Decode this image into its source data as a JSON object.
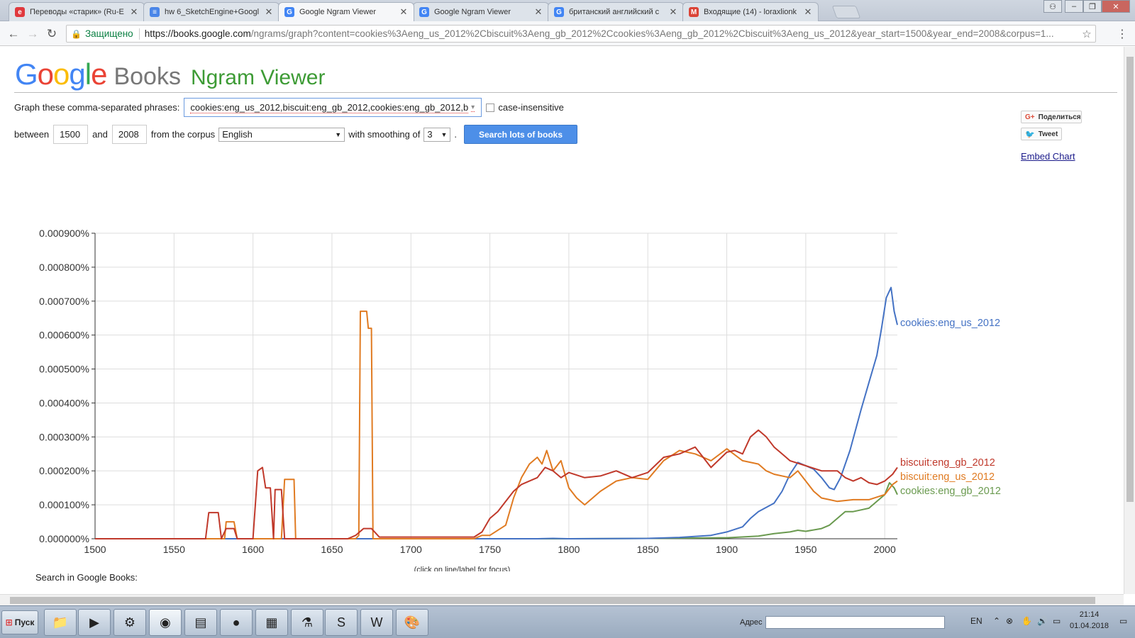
{
  "tabs": [
    {
      "title": "Переводы «старик» (Ru-E",
      "color": "#e0393e",
      "glyph": "e",
      "icon": "reverso-icon"
    },
    {
      "title": "hw 6_SketchEngine+Googl",
      "color": "#4a86e8",
      "glyph": "≡",
      "icon": "docs-icon"
    },
    {
      "title": "Google Ngram Viewer",
      "color": "#4285f4",
      "glyph": "G",
      "icon": "google-icon"
    },
    {
      "title": "Google Ngram Viewer",
      "color": "#4285f4",
      "glyph": "G",
      "icon": "google-icon"
    },
    {
      "title": "британский английский с",
      "color": "#4285f4",
      "glyph": "G",
      "icon": "google-icon"
    },
    {
      "title": "Входящие (14) - loraxlionk",
      "color": "#db4437",
      "glyph": "M",
      "icon": "gmail-icon"
    }
  ],
  "active_tab": 2,
  "address": {
    "secure_label": "Защищено",
    "url_host": "https://books.google.com",
    "url_rest": "/ngrams/graph?content=cookies%3Aeng_us_2012%2Cbiscuit%3Aeng_gb_2012%2Ccookies%3Aeng_gb_2012%2Cbiscuit%3Aeng_us_2012&year_start=1500&year_end=2008&corpus=1..."
  },
  "header": {
    "logo_books": "Books",
    "logo_ngram": "Ngram Viewer"
  },
  "form": {
    "phrases_label": "Graph these comma-separated phrases:",
    "phrases_value": "cookies:eng_us_2012,biscuit:eng_gb_2012,cookies:eng_gb_2012,b",
    "case_label": "case-insensitive",
    "between_label": "between",
    "year_start": "1500",
    "and_label": "and",
    "year_end": "2008",
    "corpus_label": "from the corpus",
    "corpus_value": "English",
    "smoothing_label": "with smoothing of",
    "smoothing_value": "3",
    "period": ".",
    "search_button": "Search lots of books"
  },
  "sidebar": {
    "share_label": "Поделиться",
    "tweet_label": "Tweet",
    "embed_label": "Embed Chart"
  },
  "chart_data": {
    "type": "line",
    "xlim": [
      1500,
      2008
    ],
    "ylim": [
      0,
      0.0009
    ],
    "x_ticks": [
      "1500",
      "1550",
      "1600",
      "1650",
      "1700",
      "1750",
      "1800",
      "1850",
      "1900",
      "1950",
      "2000"
    ],
    "y_ticks": [
      "0.000000%",
      "0.000100%",
      "0.000200%",
      "0.000300%",
      "0.000400%",
      "0.000500%",
      "0.000600%",
      "0.000700%",
      "0.000800%",
      "0.000900%"
    ],
    "note": "(click on line/label for focus)",
    "grid": true,
    "series": [
      {
        "name": "cookies:eng_us_2012",
        "color": "#4472c4",
        "points": [
          [
            1500,
            0
          ],
          [
            1780,
            0
          ],
          [
            1790,
            1e-06
          ],
          [
            1800,
            0
          ],
          [
            1850,
            1e-06
          ],
          [
            1870,
            4e-06
          ],
          [
            1890,
            1e-05
          ],
          [
            1900,
            2e-05
          ],
          [
            1910,
            3.5e-05
          ],
          [
            1915,
            6e-05
          ],
          [
            1920,
            8e-05
          ],
          [
            1930,
            0.000105
          ],
          [
            1935,
            0.00014
          ],
          [
            1940,
            0.00019
          ],
          [
            1945,
            0.000225
          ],
          [
            1950,
            0.000215
          ],
          [
            1955,
            0.000205
          ],
          [
            1960,
            0.00018
          ],
          [
            1965,
            0.00015
          ],
          [
            1968,
            0.000145
          ],
          [
            1972,
            0.00018
          ],
          [
            1978,
            0.00026
          ],
          [
            1985,
            0.00038
          ],
          [
            1990,
            0.00046
          ],
          [
            1995,
            0.00054
          ],
          [
            1998,
            0.00062
          ],
          [
            2001,
            0.00071
          ],
          [
            2004,
            0.00074
          ],
          [
            2006,
            0.00067
          ],
          [
            2008,
            0.00063
          ]
        ]
      },
      {
        "name": "biscuit:eng_gb_2012",
        "color": "#c0392b",
        "points": [
          [
            1500,
            0
          ],
          [
            1570,
            0
          ],
          [
            1572,
            7.7e-05
          ],
          [
            1578,
            7.7e-05
          ],
          [
            1580,
            0
          ],
          [
            1583,
            3e-05
          ],
          [
            1588,
            3e-05
          ],
          [
            1590,
            0
          ],
          [
            1600,
            0
          ],
          [
            1603,
            0.0002
          ],
          [
            1606,
            0.00021
          ],
          [
            1608,
            0.00015
          ],
          [
            1611,
            0.00015
          ],
          [
            1613,
            0
          ],
          [
            1614,
            0.000145
          ],
          [
            1618,
            0.000145
          ],
          [
            1620,
            0
          ],
          [
            1660,
            0
          ],
          [
            1665,
            1e-05
          ],
          [
            1670,
            3e-05
          ],
          [
            1675,
            3e-05
          ],
          [
            1680,
            5e-06
          ],
          [
            1700,
            5e-06
          ],
          [
            1720,
            5e-06
          ],
          [
            1740,
            5e-06
          ],
          [
            1745,
            2e-05
          ],
          [
            1750,
            6e-05
          ],
          [
            1755,
            8e-05
          ],
          [
            1760,
            0.00011
          ],
          [
            1765,
            0.00014
          ],
          [
            1770,
            0.00016
          ],
          [
            1775,
            0.00017
          ],
          [
            1780,
            0.00018
          ],
          [
            1785,
            0.00021
          ],
          [
            1790,
            0.0002
          ],
          [
            1795,
            0.00018
          ],
          [
            1800,
            0.000195
          ],
          [
            1810,
            0.00018
          ],
          [
            1820,
            0.000185
          ],
          [
            1830,
            0.0002
          ],
          [
            1840,
            0.00018
          ],
          [
            1850,
            0.000195
          ],
          [
            1860,
            0.00024
          ],
          [
            1870,
            0.00025
          ],
          [
            1880,
            0.00027
          ],
          [
            1890,
            0.00021
          ],
          [
            1900,
            0.000255
          ],
          [
            1905,
            0.00026
          ],
          [
            1910,
            0.00025
          ],
          [
            1915,
            0.0003
          ],
          [
            1920,
            0.00032
          ],
          [
            1925,
            0.0003
          ],
          [
            1930,
            0.00027
          ],
          [
            1935,
            0.00025
          ],
          [
            1940,
            0.00023
          ],
          [
            1950,
            0.000215
          ],
          [
            1960,
            0.0002
          ],
          [
            1965,
            0.0002
          ],
          [
            1970,
            0.0002
          ],
          [
            1975,
            0.00018
          ],
          [
            1980,
            0.00017
          ],
          [
            1985,
            0.00018
          ],
          [
            1990,
            0.000165
          ],
          [
            1995,
            0.00016
          ],
          [
            2000,
            0.00017
          ],
          [
            2005,
            0.00019
          ],
          [
            2008,
            0.00021
          ]
        ]
      },
      {
        "name": "biscuit:eng_us_2012",
        "color": "#e07b22",
        "points": [
          [
            1500,
            0
          ],
          [
            1582,
            0
          ],
          [
            1583,
            5e-05
          ],
          [
            1588,
            5e-05
          ],
          [
            1590,
            0
          ],
          [
            1618,
            0
          ],
          [
            1620,
            0.000175
          ],
          [
            1626,
            0.000175
          ],
          [
            1627,
            0
          ],
          [
            1665,
            0
          ],
          [
            1667,
            1e-05
          ],
          [
            1668,
            0.00067
          ],
          [
            1672,
            0.00067
          ],
          [
            1673,
            0.00062
          ],
          [
            1675,
            0.00062
          ],
          [
            1676,
            0
          ],
          [
            1740,
            0
          ],
          [
            1745,
            1e-05
          ],
          [
            1750,
            1e-05
          ],
          [
            1760,
            4e-05
          ],
          [
            1765,
            0.00012
          ],
          [
            1770,
            0.00018
          ],
          [
            1775,
            0.00022
          ],
          [
            1780,
            0.00024
          ],
          [
            1783,
            0.00022
          ],
          [
            1786,
            0.00026
          ],
          [
            1790,
            0.0002
          ],
          [
            1795,
            0.00023
          ],
          [
            1800,
            0.00015
          ],
          [
            1805,
            0.00012
          ],
          [
            1810,
            0.0001
          ],
          [
            1820,
            0.00014
          ],
          [
            1830,
            0.00017
          ],
          [
            1840,
            0.00018
          ],
          [
            1850,
            0.000175
          ],
          [
            1860,
            0.00023
          ],
          [
            1870,
            0.00026
          ],
          [
            1880,
            0.00025
          ],
          [
            1890,
            0.00023
          ],
          [
            1900,
            0.000265
          ],
          [
            1910,
            0.00023
          ],
          [
            1920,
            0.00022
          ],
          [
            1925,
            0.0002
          ],
          [
            1930,
            0.00019
          ],
          [
            1940,
            0.00018
          ],
          [
            1945,
            0.0002
          ],
          [
            1950,
            0.00017
          ],
          [
            1955,
            0.00014
          ],
          [
            1960,
            0.00012
          ],
          [
            1965,
            0.000115
          ],
          [
            1970,
            0.00011
          ],
          [
            1980,
            0.000115
          ],
          [
            1990,
            0.000115
          ],
          [
            2000,
            0.00013
          ],
          [
            2005,
            0.00016
          ],
          [
            2008,
            0.00017
          ]
        ]
      },
      {
        "name": "cookies:eng_gb_2012",
        "color": "#6a9a4f",
        "points": [
          [
            1500,
            0
          ],
          [
            1800,
            0
          ],
          [
            1850,
            1e-06
          ],
          [
            1880,
            2e-06
          ],
          [
            1900,
            3e-06
          ],
          [
            1920,
            8e-06
          ],
          [
            1930,
            1.5e-05
          ],
          [
            1940,
            2e-05
          ],
          [
            1945,
            2.5e-05
          ],
          [
            1950,
            2.2e-05
          ],
          [
            1960,
            3e-05
          ],
          [
            1965,
            4e-05
          ],
          [
            1970,
            6e-05
          ],
          [
            1975,
            8e-05
          ],
          [
            1980,
            8e-05
          ],
          [
            1985,
            8.5e-05
          ],
          [
            1990,
            9e-05
          ],
          [
            1995,
            0.00011
          ],
          [
            2000,
            0.00013
          ],
          [
            2003,
            0.000165
          ],
          [
            2006,
            0.00015
          ],
          [
            2008,
            0.00013
          ]
        ]
      }
    ]
  },
  "footer": {
    "search_in_books": "Search in Google Books:"
  },
  "taskbar": {
    "start_label": "Пуск",
    "address_label": "Адрес",
    "lang": "EN",
    "time": "21:14",
    "date": "01.04.2018"
  }
}
